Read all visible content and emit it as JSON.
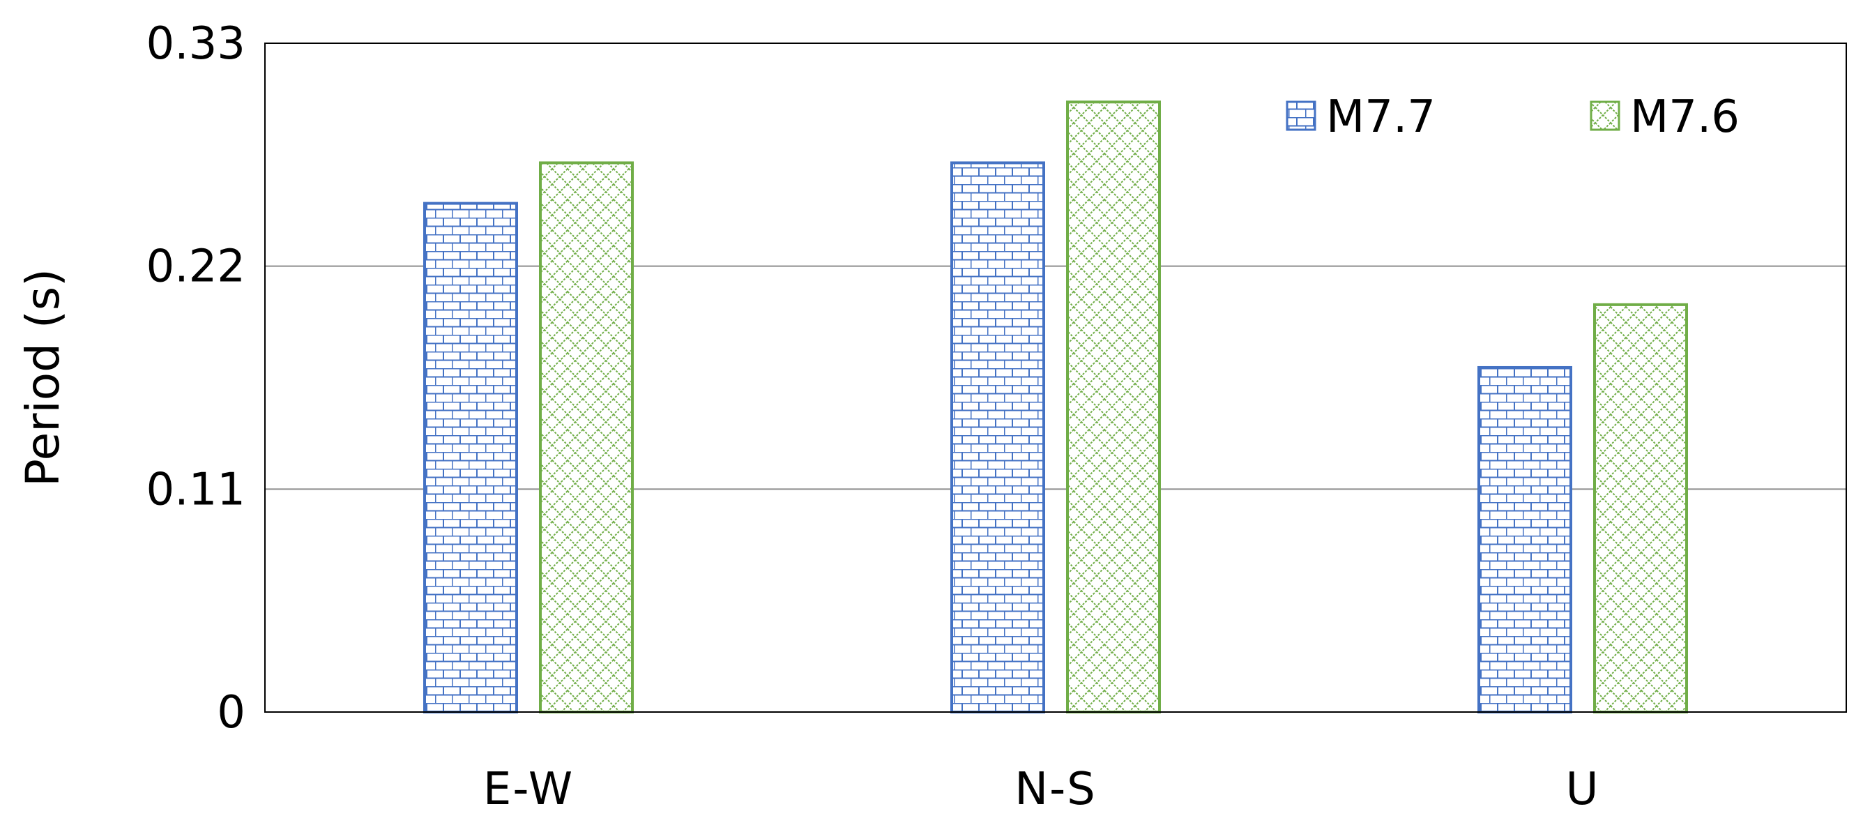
{
  "chart_data": {
    "type": "bar",
    "title": "",
    "xlabel": "",
    "ylabel": "Period (s)",
    "categories": [
      "E-W",
      "N-S",
      "U"
    ],
    "series": [
      {
        "name": "M7.7",
        "values": [
          0.251,
          0.271,
          0.17
        ],
        "color": "#4472C4",
        "pattern": "brick"
      },
      {
        "name": "M7.6",
        "values": [
          0.271,
          0.301,
          0.201
        ],
        "color": "#70AD47",
        "pattern": "diagonal-cross"
      }
    ],
    "ylim": [
      0,
      0.33
    ],
    "yticks": [
      0,
      0.11,
      0.22,
      0.33
    ],
    "ytick_labels": [
      "0",
      "0.11",
      "0.22",
      "0.33"
    ],
    "grid": true,
    "legend_position": "top-right"
  }
}
